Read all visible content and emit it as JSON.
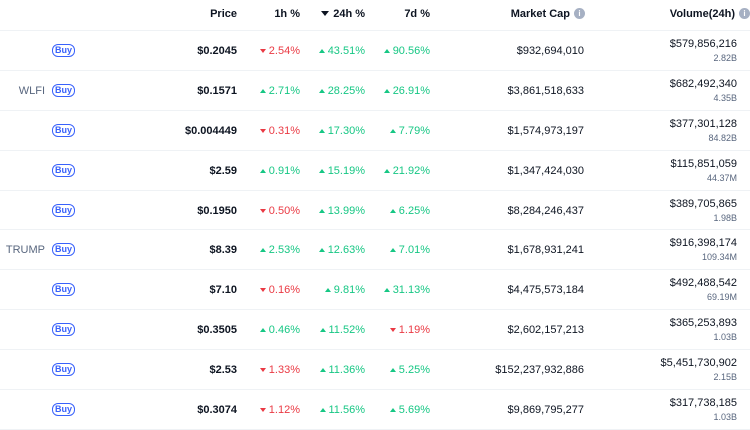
{
  "header": {
    "price": "Price",
    "h1": "1h %",
    "h24": "24h %",
    "d7": "7d %",
    "market_cap": "Market Cap",
    "volume": "Volume(24h)",
    "info_glyph": "i"
  },
  "buy_label": "Buy",
  "colors": {
    "up": "#16c784",
    "down": "#ea3943",
    "accent": "#3861fb"
  },
  "rows": [
    {
      "symbol": "",
      "price": "$0.2045",
      "h1": "2.54%",
      "h1_dir": "down",
      "h24": "43.51%",
      "h24_dir": "up",
      "d7": "90.56%",
      "d7_dir": "up",
      "market_cap": "$932,694,010",
      "volume": "$579,856,216",
      "volume_sub": "2.82B"
    },
    {
      "symbol": "WLFI",
      "price": "$0.1571",
      "h1": "2.71%",
      "h1_dir": "up",
      "h24": "28.25%",
      "h24_dir": "up",
      "d7": "26.91%",
      "d7_dir": "up",
      "market_cap": "$3,861,518,633",
      "volume": "$682,492,340",
      "volume_sub": "4.35B"
    },
    {
      "symbol": "",
      "price": "$0.004449",
      "h1": "0.31%",
      "h1_dir": "down",
      "h24": "17.30%",
      "h24_dir": "up",
      "d7": "7.79%",
      "d7_dir": "up",
      "market_cap": "$1,574,973,197",
      "volume": "$377,301,128",
      "volume_sub": "84.82B"
    },
    {
      "symbol": "",
      "price": "$2.59",
      "h1": "0.91%",
      "h1_dir": "up",
      "h24": "15.19%",
      "h24_dir": "up",
      "d7": "21.92%",
      "d7_dir": "up",
      "market_cap": "$1,347,424,030",
      "volume": "$115,851,059",
      "volume_sub": "44.37M"
    },
    {
      "symbol": "",
      "price": "$0.1950",
      "h1": "0.50%",
      "h1_dir": "down",
      "h24": "13.99%",
      "h24_dir": "up",
      "d7": "6.25%",
      "d7_dir": "up",
      "market_cap": "$8,284,246,437",
      "volume": "$389,705,865",
      "volume_sub": "1.98B"
    },
    {
      "symbol": "TRUMP",
      "price": "$8.39",
      "h1": "2.53%",
      "h1_dir": "up",
      "h24": "12.63%",
      "h24_dir": "up",
      "d7": "7.01%",
      "d7_dir": "up",
      "market_cap": "$1,678,931,241",
      "volume": "$916,398,174",
      "volume_sub": "109.34M"
    },
    {
      "symbol": "",
      "price": "$7.10",
      "h1": "0.16%",
      "h1_dir": "down",
      "h24": "9.81%",
      "h24_dir": "up",
      "d7": "31.13%",
      "d7_dir": "up",
      "market_cap": "$4,475,573,184",
      "volume": "$492,488,542",
      "volume_sub": "69.19M"
    },
    {
      "symbol": "",
      "price": "$0.3505",
      "h1": "0.46%",
      "h1_dir": "up",
      "h24": "11.52%",
      "h24_dir": "up",
      "d7": "1.19%",
      "d7_dir": "down",
      "market_cap": "$2,602,157,213",
      "volume": "$365,253,893",
      "volume_sub": "1.03B"
    },
    {
      "symbol": "",
      "price": "$2.53",
      "h1": "1.33%",
      "h1_dir": "down",
      "h24": "11.36%",
      "h24_dir": "up",
      "d7": "5.25%",
      "d7_dir": "up",
      "market_cap": "$152,237,932,886",
      "volume": "$5,451,730,902",
      "volume_sub": "2.15B"
    },
    {
      "symbol": "",
      "price": "$0.3074",
      "h1": "1.12%",
      "h1_dir": "down",
      "h24": "11.56%",
      "h24_dir": "up",
      "d7": "5.69%",
      "d7_dir": "up",
      "market_cap": "$9,869,795,277",
      "volume": "$317,738,185",
      "volume_sub": "1.03B"
    }
  ]
}
